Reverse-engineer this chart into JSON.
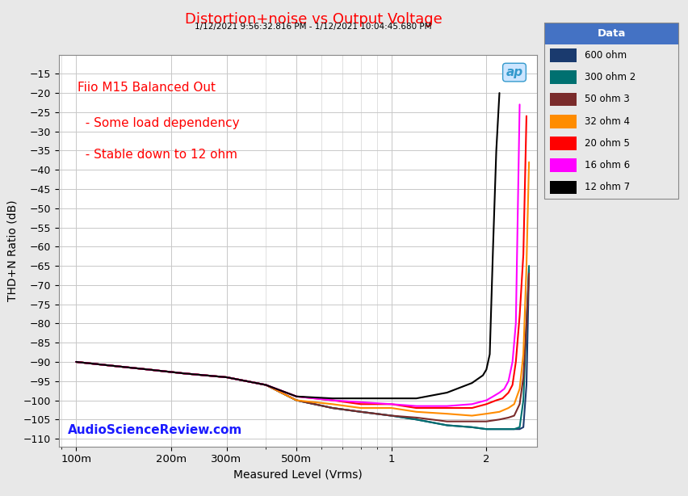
{
  "title": "Distortion+noise vs Output Voltage",
  "subtitle": "1/12/2021 9:56:32.816 PM - 1/12/2021 10:04:45.680 PM",
  "xlabel": "Measured Level (Vrms)",
  "ylabel": "THD+N Ratio (dB)",
  "annotation_line1": "Fiio M15 Balanced Out",
  "annotation_line2": "  - Some load dependency",
  "annotation_line3": "  - Stable down to 12 ohm",
  "watermark": "AudioScienceReview.com",
  "ylim": [
    -112,
    -10
  ],
  "yticks": [
    -110,
    -105,
    -100,
    -95,
    -90,
    -85,
    -80,
    -75,
    -70,
    -65,
    -60,
    -55,
    -50,
    -45,
    -40,
    -35,
    -30,
    -25,
    -20,
    -15
  ],
  "background_color": "#e8e8e8",
  "plot_bg": "#ffffff",
  "grid_color": "#c8c8c8",
  "legend_header_color": "#4472c4",
  "series": [
    {
      "label": "600 ohm",
      "color": "#1a3a6e",
      "x": [
        0.1,
        0.13,
        0.17,
        0.22,
        0.3,
        0.4,
        0.5,
        0.65,
        0.8,
        1.0,
        1.2,
        1.5,
        1.8,
        2.0,
        2.2,
        2.35,
        2.45,
        2.55,
        2.62,
        2.68,
        2.73
      ],
      "y": [
        -90,
        -91,
        -92,
        -93,
        -94,
        -96,
        -100,
        -102,
        -103,
        -104,
        -105,
        -106.5,
        -107,
        -107.5,
        -107.5,
        -107.5,
        -107.5,
        -107.5,
        -107,
        -96,
        -66
      ]
    },
    {
      "label": "300 ohm 2",
      "color": "#007070",
      "x": [
        0.1,
        0.13,
        0.17,
        0.22,
        0.3,
        0.4,
        0.5,
        0.65,
        0.8,
        1.0,
        1.2,
        1.5,
        1.8,
        2.0,
        2.2,
        2.35,
        2.45,
        2.55,
        2.62,
        2.68,
        2.73
      ],
      "y": [
        -90,
        -91,
        -92,
        -93,
        -94,
        -96,
        -100,
        -102,
        -103,
        -104,
        -105,
        -106.5,
        -107,
        -107.5,
        -107.5,
        -107.5,
        -107.5,
        -107,
        -100,
        -80,
        -65
      ]
    },
    {
      "label": "50 ohm 3",
      "color": "#7a2b2b",
      "x": [
        0.1,
        0.13,
        0.17,
        0.22,
        0.3,
        0.4,
        0.5,
        0.65,
        0.8,
        1.0,
        1.2,
        1.5,
        1.8,
        2.0,
        2.2,
        2.35,
        2.45,
        2.55,
        2.62,
        2.68,
        2.73
      ],
      "y": [
        -90,
        -91,
        -92,
        -93,
        -94,
        -96,
        -100,
        -102,
        -103,
        -104,
        -104.5,
        -105.5,
        -105.5,
        -105.5,
        -105,
        -104.5,
        -104,
        -101,
        -94,
        -80,
        -67
      ]
    },
    {
      "label": "32 ohm 4",
      "color": "#ff8c00",
      "x": [
        0.1,
        0.13,
        0.17,
        0.22,
        0.3,
        0.4,
        0.5,
        0.65,
        0.8,
        1.0,
        1.2,
        1.5,
        1.8,
        2.0,
        2.2,
        2.35,
        2.45,
        2.55,
        2.62,
        2.68,
        2.73
      ],
      "y": [
        -90,
        -91,
        -92,
        -93,
        -94,
        -96,
        -100,
        -101,
        -102,
        -102,
        -103,
        -103.5,
        -104,
        -103.5,
        -103,
        -102,
        -101,
        -97,
        -88,
        -65,
        -38
      ]
    },
    {
      "label": "20 ohm 5",
      "color": "#ff0000",
      "x": [
        0.1,
        0.13,
        0.17,
        0.22,
        0.3,
        0.4,
        0.5,
        0.65,
        0.8,
        1.0,
        1.2,
        1.5,
        1.8,
        2.0,
        2.15,
        2.25,
        2.35,
        2.42,
        2.48,
        2.55,
        2.62,
        2.68
      ],
      "y": [
        -90,
        -91,
        -92,
        -93,
        -94,
        -96,
        -99,
        -100,
        -101,
        -101,
        -102,
        -102,
        -102,
        -101,
        -100,
        -99.5,
        -98,
        -96,
        -90,
        -78,
        -62,
        -26
      ]
    },
    {
      "label": "16 ohm 6",
      "color": "#ff00ff",
      "x": [
        0.1,
        0.13,
        0.17,
        0.22,
        0.3,
        0.4,
        0.5,
        0.65,
        0.8,
        1.0,
        1.2,
        1.5,
        1.8,
        2.0,
        2.1,
        2.2,
        2.28,
        2.35,
        2.42,
        2.48,
        2.55
      ],
      "y": [
        -90,
        -91,
        -92,
        -93,
        -94,
        -96,
        -99,
        -100,
        -100.5,
        -101,
        -101.5,
        -101.5,
        -101,
        -100,
        -99,
        -98,
        -97,
        -95,
        -90,
        -80,
        -23
      ]
    },
    {
      "label": "12 ohm 7",
      "color": "#000000",
      "x": [
        0.1,
        0.13,
        0.17,
        0.22,
        0.3,
        0.4,
        0.5,
        0.65,
        0.8,
        1.0,
        1.2,
        1.5,
        1.8,
        1.95,
        2.0,
        2.05,
        2.1,
        2.15,
        2.2
      ],
      "y": [
        -90,
        -91,
        -92,
        -93,
        -94,
        -96,
        -99,
        -99.5,
        -99.5,
        -99.5,
        -99.5,
        -98,
        -95.5,
        -93.5,
        -92,
        -88,
        -60,
        -35,
        -20
      ]
    }
  ]
}
